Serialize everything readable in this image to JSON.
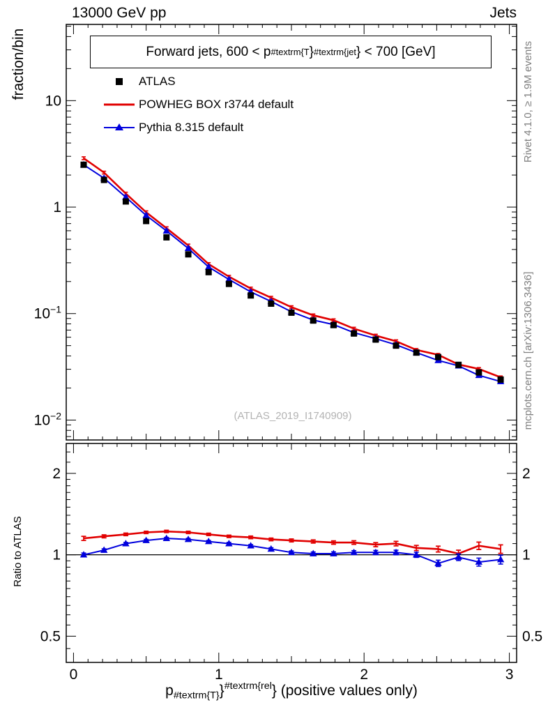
{
  "header": {
    "left": "13000 GeV pp",
    "right": "Jets"
  },
  "main_panel": {
    "ylabel": "fraction/bin",
    "title_parts": {
      "prefix": "Forward jets, 600 < p",
      "sub": "#textrm{T",
      "mid": "}",
      "sup": "#textrm{jet",
      "suffix": "} < 700 [GeV]"
    },
    "watermark": "(ATLAS_2019_I1740909)"
  },
  "ratio_panel": {
    "ylabel": "Ratio to ATLAS"
  },
  "xaxis": {
    "label_parts": {
      "prefix": "p",
      "sub": "#textrm{T}",
      "mid": "}",
      "sup": "#textrm{rel",
      "suffix": "} (positive values only)"
    }
  },
  "side_notes": {
    "top": "Rivet 4.1.0, ≥ 1.9M events",
    "bottom": "mcplots.cern.ch [arXiv:1306.3436]"
  },
  "chart_data": {
    "type": "line",
    "title": "Forward jets, 600 < p_{#textrm{T}}^{#textrm{jet}} < 700 [GeV]",
    "xlabel": "p_{#textrm{T}}^{#textrm{rel}} (positive values only)",
    "ylabel": "fraction/bin",
    "yscale": "log",
    "xlim": [
      -0.05,
      3.05
    ],
    "ylim_main": [
      0.0065,
      52
    ],
    "ylim_ratio": [
      0.4,
      2.58
    ],
    "xticks": [
      0,
      1,
      2,
      3
    ],
    "yticks_main_exp": [
      -2,
      -1,
      0,
      1
    ],
    "yticks_ratio": [
      0.5,
      1,
      2
    ],
    "legend_position": "top-left",
    "x": [
      0.07,
      0.21,
      0.36,
      0.5,
      0.64,
      0.79,
      0.93,
      1.07,
      1.22,
      1.36,
      1.5,
      1.65,
      1.79,
      1.93,
      2.08,
      2.22,
      2.36,
      2.51,
      2.65,
      2.79,
      2.94
    ],
    "series": [
      {
        "name": "ATLAS",
        "type": "points",
        "marker": "square",
        "color": "#000000",
        "values": [
          2.5,
          1.8,
          1.13,
          0.74,
          0.52,
          0.36,
          0.245,
          0.19,
          0.148,
          0.124,
          0.102,
          0.086,
          0.078,
          0.065,
          0.057,
          0.05,
          0.043,
          0.039,
          0.033,
          0.028,
          0.024
        ]
      },
      {
        "name": "POWHEG BOX r3744 default",
        "type": "line",
        "color": "#e10000",
        "values": [
          2.88,
          2.11,
          1.34,
          0.895,
          0.634,
          0.436,
          0.292,
          0.222,
          0.172,
          0.141,
          0.115,
          0.0963,
          0.0866,
          0.0722,
          0.0621,
          0.055,
          0.0456,
          0.041,
          0.0333,
          0.0302,
          0.0252
        ]
      },
      {
        "name": "Pythia 8.315 default",
        "type": "line",
        "marker": "triangle",
        "color": "#0000dd",
        "values": [
          2.5,
          1.87,
          1.24,
          0.836,
          0.598,
          0.41,
          0.274,
          0.209,
          0.16,
          0.13,
          0.104,
          0.0869,
          0.0788,
          0.0663,
          0.0581,
          0.051,
          0.043,
          0.0363,
          0.0323,
          0.0263,
          0.023
        ]
      }
    ],
    "ratio": {
      "label": "Ratio to ATLAS",
      "reference": 1,
      "series": [
        {
          "name": "POWHEG BOX r3744 default",
          "color": "#e10000",
          "values": [
            1.15,
            1.17,
            1.19,
            1.21,
            1.22,
            1.21,
            1.19,
            1.17,
            1.16,
            1.14,
            1.13,
            1.12,
            1.11,
            1.11,
            1.09,
            1.1,
            1.06,
            1.05,
            1.01,
            1.08,
            1.05
          ],
          "errors": [
            0.02,
            0.015,
            0.013,
            0.012,
            0.012,
            0.012,
            0.012,
            0.012,
            0.013,
            0.013,
            0.014,
            0.015,
            0.016,
            0.017,
            0.019,
            0.021,
            0.023,
            0.026,
            0.03,
            0.034,
            0.038
          ]
        },
        {
          "name": "Pythia 8.315 default",
          "color": "#0000dd",
          "values": [
            1.0,
            1.04,
            1.1,
            1.13,
            1.15,
            1.14,
            1.12,
            1.1,
            1.08,
            1.05,
            1.02,
            1.01,
            1.01,
            1.02,
            1.02,
            1.02,
            1.0,
            0.93,
            0.98,
            0.94,
            0.96
          ],
          "errors": [
            0.015,
            0.012,
            0.011,
            0.01,
            0.01,
            0.01,
            0.01,
            0.011,
            0.011,
            0.012,
            0.013,
            0.014,
            0.015,
            0.016,
            0.018,
            0.02,
            0.022,
            0.025,
            0.028,
            0.032,
            0.036
          ]
        }
      ]
    },
    "err_frac_main": 0.03
  }
}
